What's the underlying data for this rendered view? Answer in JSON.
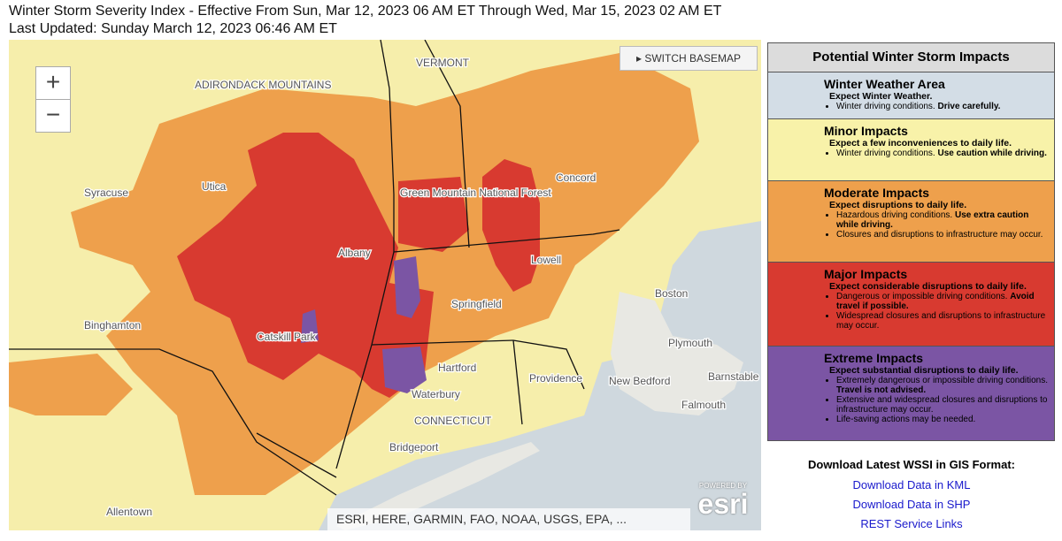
{
  "header": {
    "title": "Winter Storm Severity Index - Effective From Sun, Mar 12, 2023 06 AM ET Through Wed, Mar 15, 2023 02 AM ET",
    "updated": "Last Updated: Sunday March 12, 2023 06:46 AM ET"
  },
  "map": {
    "controls": {
      "zoom_in": "+",
      "zoom_out": "−",
      "switch_basemap": "SWITCH BASEMAP"
    },
    "labels": [
      "ADIRONDACK MOUNTAINS",
      "VERMONT",
      "Syracuse",
      "Utica",
      "Albany",
      "Binghamton",
      "Catskill Park",
      "Green Mountain National Forest",
      "Concord",
      "Lowell",
      "Boston",
      "Springfield",
      "Hartford",
      "Providence",
      "Waterbury",
      "New Bedford",
      "Plymouth",
      "Barnstable",
      "Falmouth",
      "CONNECTICUT",
      "Bridgeport",
      "Allentown"
    ],
    "attribution": "ESRI, HERE, GARMIN, FAO, NOAA, USGS, EPA, ...",
    "logo": {
      "powered_by": "POWERED BY",
      "brand": "esri"
    }
  },
  "legend": {
    "title": "Potential Winter Storm Impacts",
    "items": [
      {
        "title": "Winter Weather Area",
        "color": "#d3dde6",
        "subtitle": "Expect Winter Weather.",
        "bullets": [
          {
            "text": "Winter driving conditions. ",
            "bold": "Drive carefully."
          }
        ]
      },
      {
        "title": "Minor Impacts",
        "color": "#f8f2a9",
        "subtitle": "Expect a few inconveniences to daily life.",
        "bullets": [
          {
            "text": "Winter driving conditions. ",
            "bold": "Use caution while driving."
          }
        ]
      },
      {
        "title": "Moderate Impacts",
        "color": "#eea04c",
        "subtitle": "Expect disruptions to daily life.",
        "bullets": [
          {
            "text": "Hazardous driving conditions. ",
            "bold": "Use extra caution while driving."
          },
          {
            "text": "Closures and disruptions to infrastructure may occur."
          }
        ]
      },
      {
        "title": "Major Impacts",
        "color": "#d83a30",
        "subtitle": "Expect considerable disruptions to daily life.",
        "bullets": [
          {
            "text": "Dangerous or impossible driving conditions. ",
            "bold": "Avoid travel if possible."
          },
          {
            "text": "Widespread closures and disruptions to infrastructure may occur."
          }
        ]
      },
      {
        "title": "Extreme Impacts",
        "color": "#7b55a4",
        "subtitle": "Expect substantial disruptions to daily life.",
        "bullets": [
          {
            "text": "Extremely dangerous or impossible driving conditions. ",
            "bold": "Travel is not advised."
          },
          {
            "text": "Extensive and widespread closures and disruptions to infrastructure may occur."
          },
          {
            "text": "Life-saving actions may be needed."
          }
        ]
      }
    ]
  },
  "downloads": {
    "title": "Download Latest WSSI in GIS Format:",
    "links": [
      "Download Data in KML",
      "Download Data in SHP",
      "REST Service Links"
    ]
  }
}
